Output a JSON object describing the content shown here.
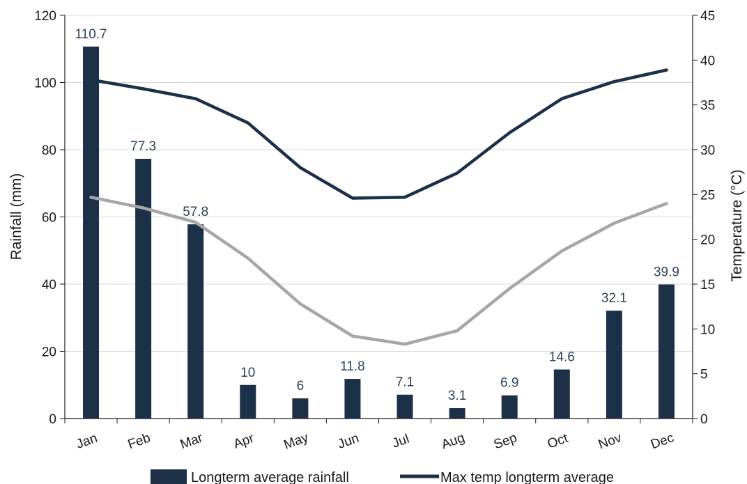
{
  "chart_data": {
    "type": "bar",
    "title": "",
    "categories": [
      "Jan",
      "Feb",
      "Mar",
      "Apr",
      "May",
      "Jun",
      "Jul",
      "Aug",
      "Sep",
      "Oct",
      "Nov",
      "Dec"
    ],
    "series": [
      {
        "name": "Longterm average rainfall",
        "type": "bar",
        "axis": "left",
        "color": "#1c3048",
        "values": [
          110.7,
          77.3,
          57.8,
          10,
          6,
          11.8,
          7.1,
          3.1,
          6.9,
          14.6,
          32.1,
          39.9
        ],
        "labels": [
          "110.7",
          "77.3",
          "57.8",
          "10",
          "6",
          "11.8",
          "7.1",
          "3.1",
          "6.9",
          "14.6",
          "32.1",
          "39.9"
        ]
      },
      {
        "name": "Max temp longterm average",
        "type": "line",
        "axis": "right",
        "color": "#1c3048",
        "values": [
          37.8,
          36.8,
          35.7,
          33.0,
          28.0,
          24.6,
          24.7,
          27.4,
          31.9,
          35.7,
          37.6,
          38.9
        ]
      },
      {
        "type": "line",
        "axis": "right",
        "color": "#a6a6a6",
        "values": [
          24.7,
          23.5,
          21.9,
          17.9,
          12.8,
          9.2,
          8.3,
          9.8,
          14.5,
          18.7,
          21.8,
          24.0
        ]
      }
    ],
    "ylabel": "Rainfall (mm)",
    "ylim": [
      0,
      120
    ],
    "yticks": [
      "0",
      "20",
      "40",
      "60",
      "80",
      "100",
      "120"
    ],
    "y2label": "Temperature (°C)",
    "y2lim": [
      0,
      45
    ],
    "y2ticks": [
      "0",
      "5",
      "10",
      "15",
      "20",
      "25",
      "30",
      "35",
      "40",
      "45"
    ],
    "grid": true,
    "legend_position": "bottom"
  }
}
